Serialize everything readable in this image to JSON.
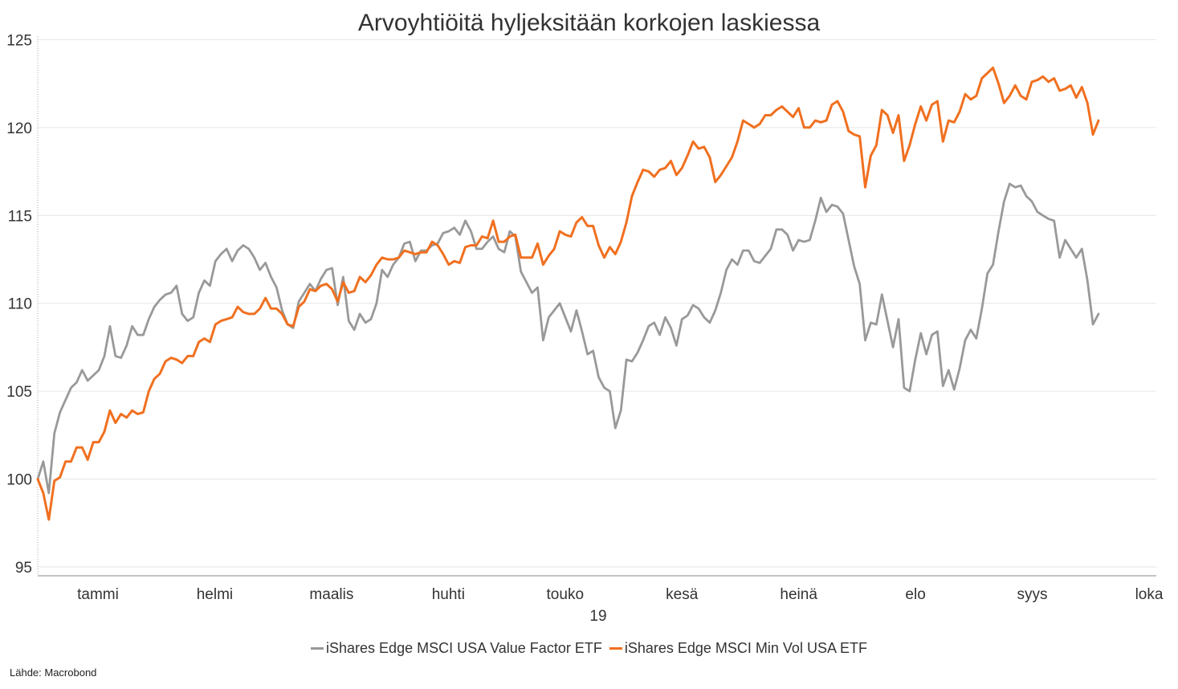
{
  "chart_data": {
    "type": "line",
    "title": "Arvoyhtiöitä hyljeksitään korkojen laskiessa",
    "source": "Lähde: Macrobond",
    "x_axis": {
      "months": [
        "tammi",
        "helmi",
        "maalis",
        "huhti",
        "touko",
        "kesä",
        "heinä",
        "elo",
        "syys",
        "loka"
      ],
      "year_label": "19"
    },
    "y_axis": {
      "ticks": [
        95,
        100,
        105,
        110,
        115,
        120,
        125
      ],
      "ylim": [
        94.5,
        125.2
      ]
    },
    "grid": "horizontal",
    "legend_position": "bottom",
    "series": [
      {
        "name": "iShares Edge MSCI USA Value Factor ETF",
        "color": "#999999",
        "values": [
          100.0,
          101.0,
          99.2,
          102.6,
          103.8,
          104.5,
          105.2,
          105.5,
          106.2,
          105.6,
          105.9,
          106.2,
          107.0,
          108.7,
          107.0,
          106.9,
          107.6,
          108.7,
          108.2,
          108.2,
          109.1,
          109.8,
          110.2,
          110.5,
          110.6,
          111.0,
          109.4,
          109.0,
          109.2,
          110.6,
          111.3,
          111.0,
          112.4,
          112.8,
          113.1,
          112.4,
          113.0,
          113.3,
          113.1,
          112.6,
          111.9,
          112.3,
          111.5,
          110.9,
          109.6,
          108.8,
          108.6,
          110.1,
          110.6,
          111.1,
          110.7,
          111.4,
          111.9,
          112.0,
          109.9,
          111.5,
          109.0,
          108.5,
          109.4,
          108.9,
          109.1,
          110.0,
          111.9,
          111.5,
          112.2,
          112.6,
          113.4,
          113.5,
          112.4,
          113.0,
          113.0,
          113.3,
          113.4,
          114.0,
          114.1,
          114.3,
          113.9,
          114.7,
          114.1,
          113.1,
          113.1,
          113.5,
          113.8,
          113.1,
          112.9,
          114.1,
          113.8,
          111.8,
          111.2,
          110.6,
          110.9,
          107.9,
          109.2,
          109.6,
          110.0,
          109.2,
          108.4,
          109.6,
          108.4,
          107.1,
          107.3,
          105.8,
          105.2,
          105.0,
          102.9,
          103.9,
          106.8,
          106.7,
          107.2,
          107.9,
          108.7,
          108.9,
          108.2,
          109.2,
          108.6,
          107.6,
          109.1,
          109.3,
          109.9,
          109.7,
          109.2,
          108.9,
          109.6,
          110.6,
          111.9,
          112.5,
          112.2,
          113.0,
          113.0,
          112.4,
          112.3,
          112.7,
          113.1,
          114.2,
          114.2,
          113.9,
          113.0,
          113.6,
          113.5,
          113.6,
          114.7,
          116.0,
          115.2,
          115.6,
          115.5,
          115.1,
          113.6,
          112.1,
          111.1,
          107.9,
          108.9,
          108.8,
          110.5,
          109.0,
          107.5,
          109.1,
          105.2,
          105.0,
          106.8,
          108.3,
          107.1,
          108.2,
          108.4,
          105.3,
          106.2,
          105.1,
          106.3,
          107.9,
          108.5,
          108.0,
          109.7,
          111.7,
          112.2,
          114.1,
          115.8,
          116.8,
          116.6,
          116.7,
          116.1,
          115.8,
          115.2,
          115.0,
          114.8,
          114.7,
          112.6,
          113.6,
          113.1,
          112.6,
          113.1,
          111.3,
          108.8,
          109.4
        ]
      },
      {
        "name": "iShares Edge MSCI Min Vol USA ETF",
        "color": "#f07020",
        "values": [
          100.0,
          99.2,
          97.7,
          99.9,
          100.1,
          101.0,
          101.0,
          101.8,
          101.8,
          101.1,
          102.1,
          102.1,
          102.7,
          103.9,
          103.2,
          103.7,
          103.5,
          103.9,
          103.7,
          103.8,
          105.0,
          105.7,
          106.0,
          106.7,
          106.9,
          106.8,
          106.6,
          107.0,
          107.0,
          107.8,
          108.0,
          107.8,
          108.8,
          109.0,
          109.1,
          109.2,
          109.8,
          109.5,
          109.4,
          109.4,
          109.7,
          110.3,
          109.7,
          109.7,
          109.4,
          108.8,
          108.7,
          109.8,
          110.1,
          110.8,
          110.7,
          111.0,
          111.1,
          110.8,
          110.1,
          111.2,
          110.6,
          110.7,
          111.5,
          111.2,
          111.6,
          112.2,
          112.6,
          112.5,
          112.5,
          112.6,
          113.0,
          112.9,
          112.8,
          112.9,
          112.9,
          113.5,
          113.3,
          112.8,
          112.2,
          112.4,
          112.3,
          113.2,
          113.3,
          113.3,
          113.8,
          113.7,
          114.7,
          113.5,
          113.5,
          113.8,
          113.9,
          112.6,
          112.6,
          112.6,
          113.4,
          112.2,
          112.7,
          113.1,
          114.1,
          113.9,
          113.8,
          114.6,
          114.9,
          114.4,
          114.4,
          113.3,
          112.6,
          113.2,
          112.8,
          113.5,
          114.6,
          116.1,
          116.9,
          117.6,
          117.5,
          117.2,
          117.6,
          117.7,
          118.1,
          117.3,
          117.7,
          118.4,
          119.2,
          118.8,
          118.9,
          118.3,
          116.9,
          117.3,
          117.8,
          118.3,
          119.2,
          120.4,
          120.2,
          120.0,
          120.2,
          120.7,
          120.7,
          121.0,
          121.2,
          120.9,
          120.6,
          121.1,
          120.0,
          120.0,
          120.4,
          120.3,
          120.4,
          121.3,
          121.5,
          120.9,
          119.8,
          119.6,
          119.5,
          116.6,
          118.4,
          119.0,
          121.0,
          120.7,
          119.7,
          120.7,
          118.1,
          119.0,
          120.2,
          121.2,
          120.4,
          121.3,
          121.5,
          119.2,
          120.4,
          120.3,
          120.9,
          121.9,
          121.6,
          121.8,
          122.8,
          123.1,
          123.4,
          122.5,
          121.4,
          121.8,
          122.4,
          121.8,
          121.6,
          122.6,
          122.7,
          122.9,
          122.6,
          122.8,
          122.1,
          122.2,
          122.4,
          121.7,
          122.3,
          121.4,
          119.6,
          120.4
        ]
      }
    ]
  }
}
